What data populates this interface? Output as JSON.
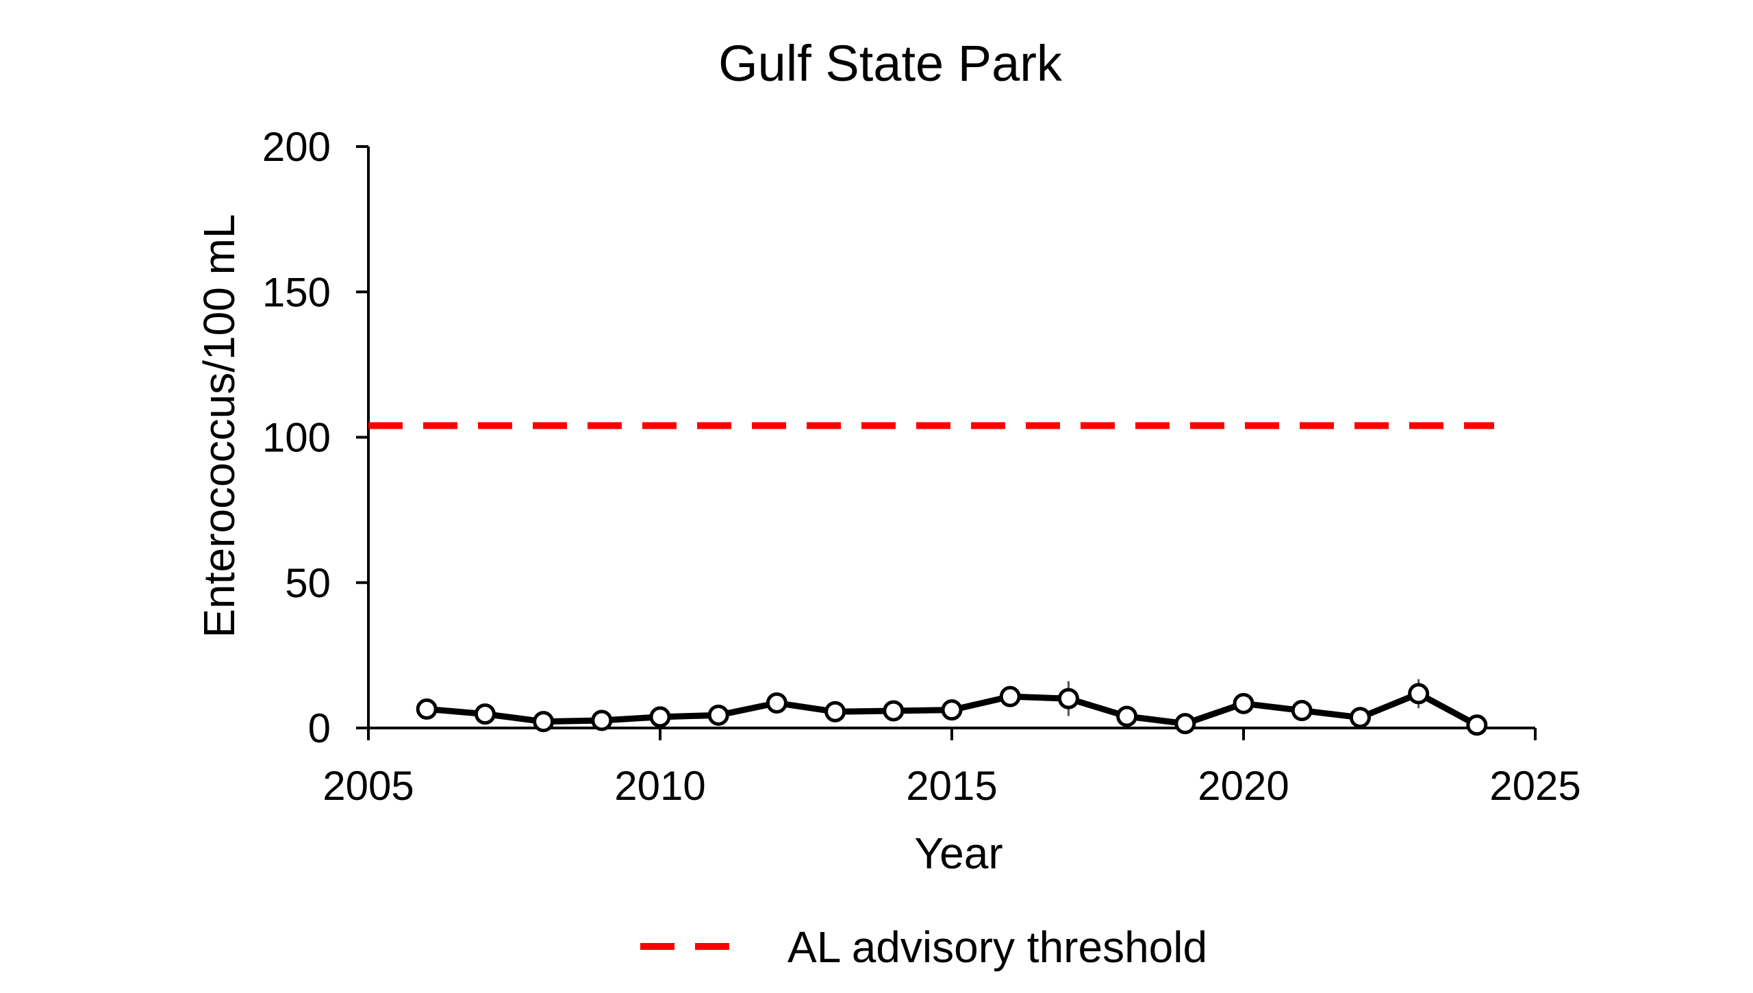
{
  "chart_data": {
    "type": "line",
    "title": "Gulf State Park",
    "xlabel": "Year",
    "ylabel": "Enterococcus/100 mL",
    "xlim": [
      2005,
      2025
    ],
    "ylim": [
      0,
      200
    ],
    "xticks": [
      2005,
      2010,
      2015,
      2020,
      2025
    ],
    "yticks": [
      0,
      50,
      100,
      150,
      200
    ],
    "grid": false,
    "legend_position": "bottom",
    "series": [
      {
        "color": "#000000",
        "marker": "open-circle",
        "x": [
          2006,
          2007,
          2008,
          2009,
          2010,
          2011,
          2012,
          2013,
          2014,
          2015,
          2016,
          2017,
          2018,
          2019,
          2020,
          2021,
          2022,
          2023,
          2024
        ],
        "y": [
          6.5,
          4.8,
          2.2,
          2.6,
          3.8,
          4.4,
          8.6,
          5.6,
          5.9,
          6.2,
          10.8,
          10.1,
          4.0,
          1.5,
          8.4,
          6.0,
          3.6,
          11.8,
          1.0
        ],
        "error": [
          0,
          0,
          0,
          0,
          0,
          0,
          0,
          0,
          0,
          0,
          0,
          6,
          0,
          0,
          0,
          0,
          0,
          5,
          0
        ]
      }
    ],
    "reference_lines": [
      {
        "name": "AL advisory threshold",
        "y": 104,
        "color": "#ff0000",
        "style": "dashed"
      }
    ]
  }
}
